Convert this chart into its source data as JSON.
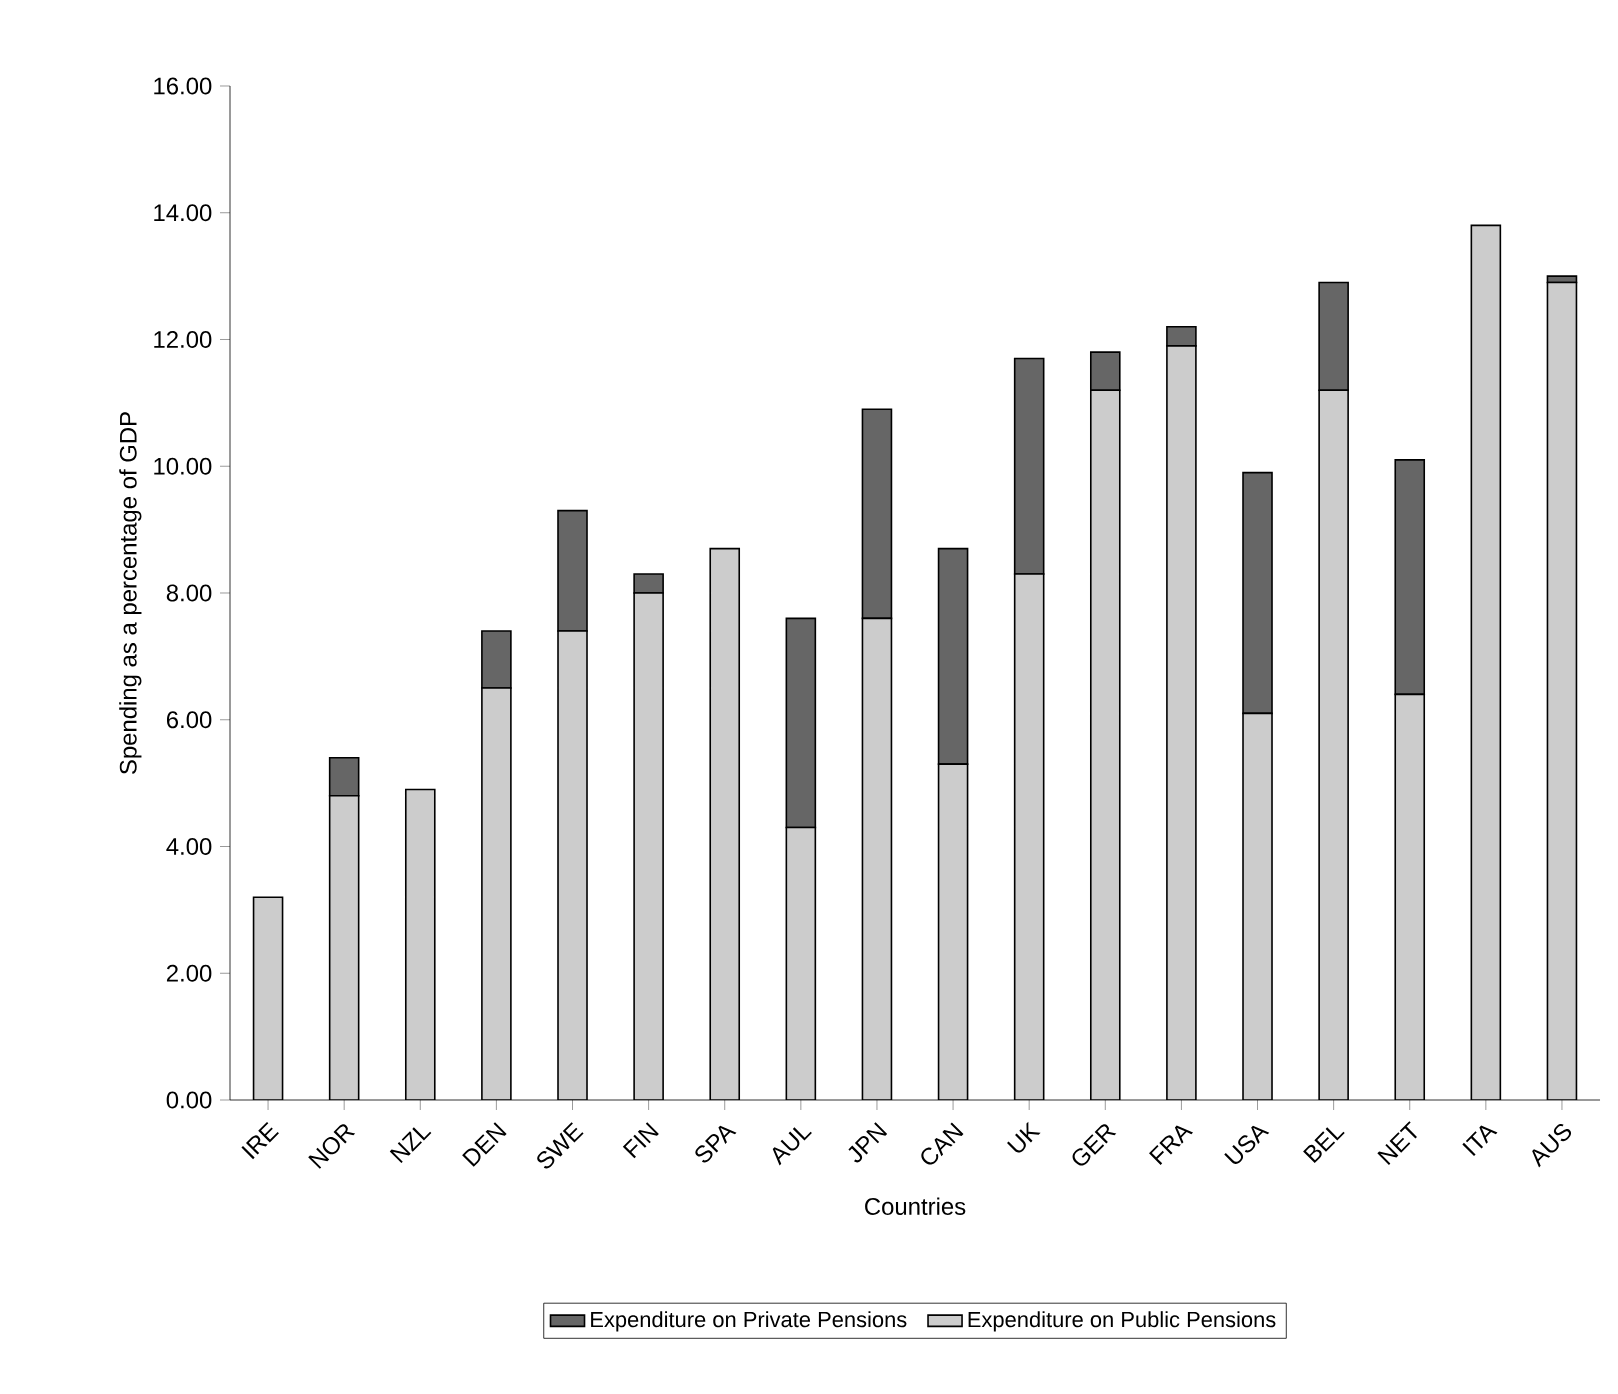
{
  "chart_data": {
    "type": "bar",
    "stacked": true,
    "xlabel": "Countries",
    "ylabel": "Spending as a percentage of GDP",
    "categories": [
      "IRE",
      "NOR",
      "NZL",
      "DEN",
      "SWE",
      "FIN",
      "SPA",
      "AUL",
      "JPN",
      "CAN",
      "UK",
      "GER",
      "FRA",
      "USA",
      "BEL",
      "NET",
      "ITA",
      "AUS"
    ],
    "series": [
      {
        "name": "Expenditure on Public Pensions",
        "color": "#cccccc",
        "values": [
          3.2,
          4.8,
          4.9,
          6.5,
          7.4,
          8.0,
          8.7,
          4.3,
          7.6,
          5.3,
          8.3,
          11.2,
          11.9,
          6.1,
          11.2,
          6.4,
          13.8,
          12.9
        ]
      },
      {
        "name": "Expenditure on Private Pensions",
        "color": "#666666",
        "values": [
          null,
          0.6,
          null,
          0.9,
          1.9,
          0.3,
          null,
          3.3,
          3.3,
          3.4,
          3.4,
          0.6,
          0.3,
          3.8,
          1.7,
          3.7,
          null,
          0.1
        ]
      }
    ],
    "ylim": [
      0,
      16
    ],
    "yticks": [
      {
        "value": 0,
        "label": "0.00"
      },
      {
        "value": 2,
        "label": "2.00"
      },
      {
        "value": 4,
        "label": "4.00"
      },
      {
        "value": 6,
        "label": "6.00"
      },
      {
        "value": 8,
        "label": "8.00"
      },
      {
        "value": 10,
        "label": "10.00"
      },
      {
        "value": 12,
        "label": "12.00"
      },
      {
        "value": 14,
        "label": "14.00"
      },
      {
        "value": 16,
        "label": "16.00"
      }
    ],
    "legend": "bottom"
  }
}
